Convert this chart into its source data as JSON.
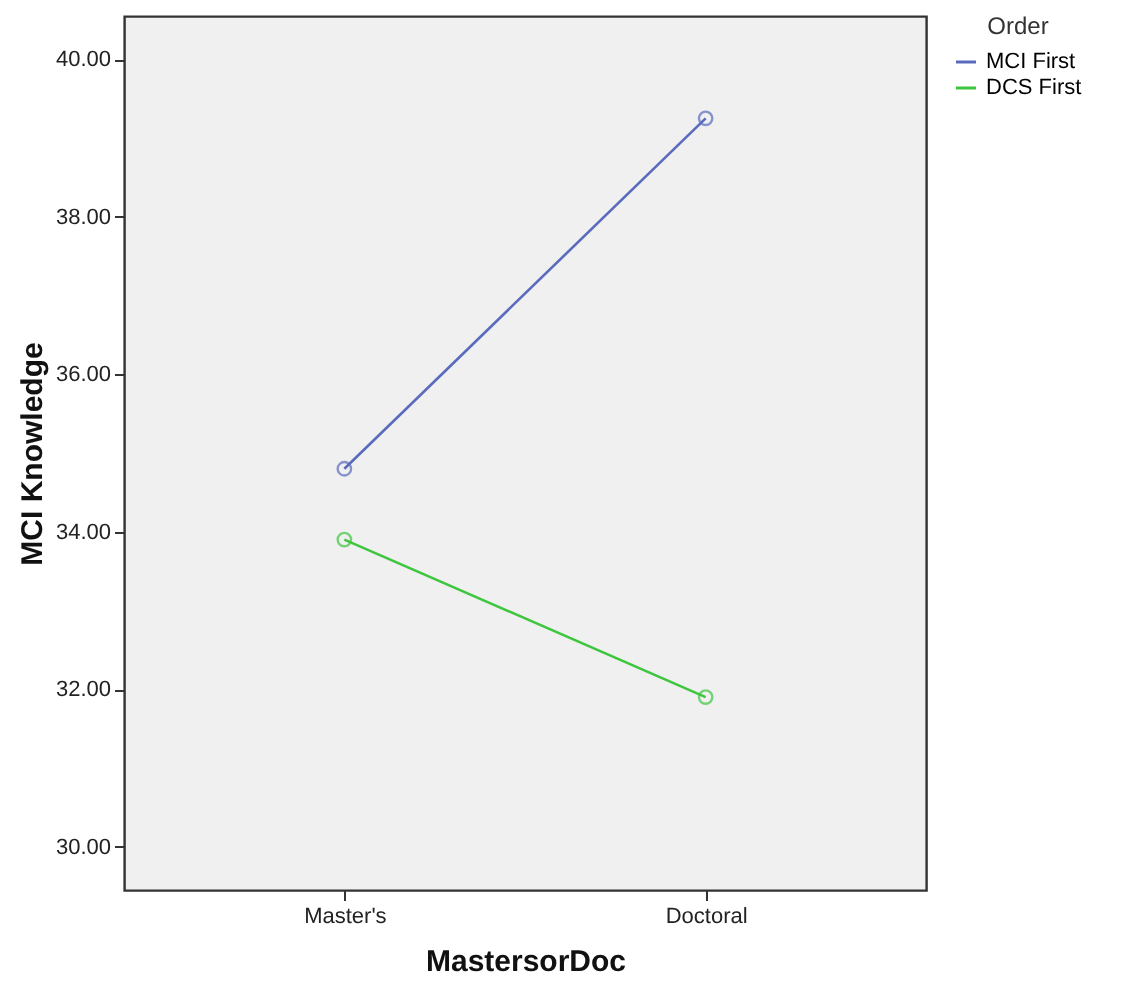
{
  "chart_data": {
    "type": "line",
    "xlabel": "MastersorDoc",
    "ylabel": "MCI Knowledge",
    "legend_title": "Order",
    "categories": [
      "Master's",
      "Doctoral"
    ],
    "series": [
      {
        "name": "MCI First",
        "color": "#5a6bbd",
        "values": [
          34.8,
          39.25
        ]
      },
      {
        "name": "DCS First",
        "color": "#3fc63f",
        "values": [
          33.9,
          31.9
        ]
      }
    ],
    "ylim": [
      29.45,
      40.55
    ],
    "yticks": [
      {
        "value": 30,
        "label": "30.00"
      },
      {
        "value": 32,
        "label": "32.00"
      },
      {
        "value": 34,
        "label": "34.00"
      },
      {
        "value": 36,
        "label": "36.00"
      },
      {
        "value": 38,
        "label": "38.00"
      },
      {
        "value": 40,
        "label": "40.00"
      }
    ],
    "grid": false,
    "legend": "top right",
    "marker": "circle",
    "line_style": "solid"
  }
}
